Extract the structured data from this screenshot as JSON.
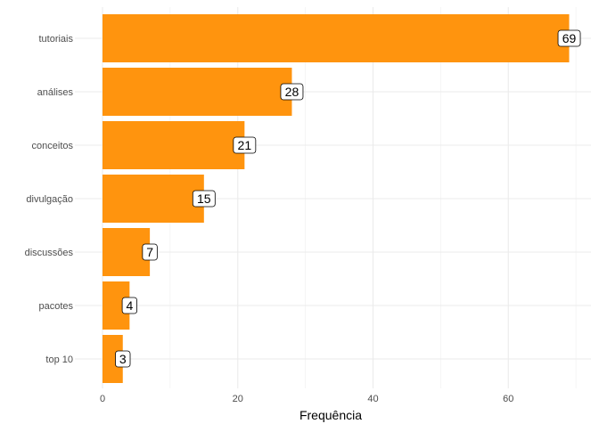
{
  "chart_data": {
    "type": "bar",
    "orientation": "horizontal",
    "categories": [
      "tutoriais",
      "análises",
      "conceitos",
      "divulgação",
      "discussões",
      "pacotes",
      "top 10"
    ],
    "values": [
      69,
      28,
      21,
      15,
      7,
      4,
      3
    ],
    "xlabel": "Frequência",
    "ylabel": "",
    "xlim": [
      0,
      72
    ],
    "xticks": [
      0,
      20,
      40,
      60
    ],
    "bar_color": "#FF940E",
    "grid": true,
    "legend": "none",
    "data_labels": true
  }
}
